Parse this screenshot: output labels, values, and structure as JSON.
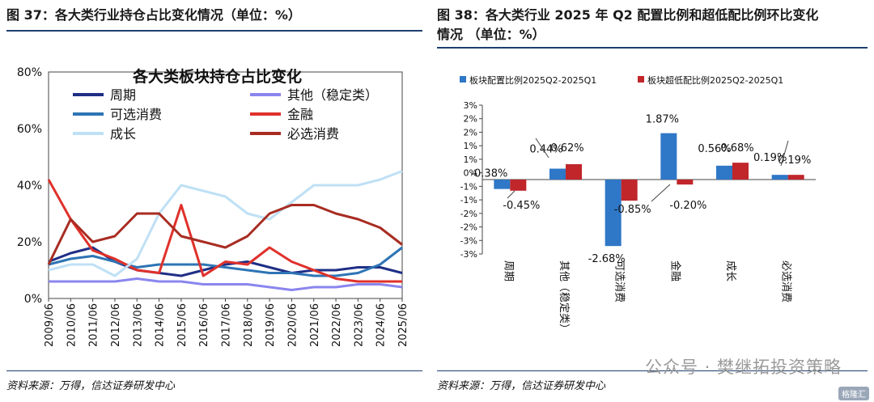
{
  "left": {
    "figure_title": "图 37：各大类行业持仓占比变化情况（单位：%）",
    "source": "资料来源：万得，信达证券研发中心"
  },
  "right": {
    "figure_title_line1": "图 38：各大类行业 2025 年 Q2 配置比例和超低配比例环比变化",
    "figure_title_line2": "情况 （单位：%）",
    "source": "资料来源：万得，信达证券研发中心"
  },
  "watermark": "公众号 · 樊继拓投资策略",
  "badge": "格隆汇",
  "colors": {
    "title_blue": "#1e3f6f",
    "zhouqi": "#1f2f86",
    "qita": "#8a86ee",
    "kexuan": "#2e74b5",
    "jinrong": "#e0312b",
    "chengzhang": "#bfe0f5",
    "bixuan": "#a82c22",
    "bar_blue": "#2f77c7",
    "bar_red": "#c0262a"
  },
  "chart_data": [
    {
      "type": "line",
      "title": "各大类板块持仓占比变化",
      "x": [
        "2009/06",
        "2010/06",
        "2011/06",
        "2012/06",
        "2013/06",
        "2014/06",
        "2015/06",
        "2016/06",
        "2017/06",
        "2018/06",
        "2019/06",
        "2020/06",
        "2021/06",
        "2022/06",
        "2023/06",
        "2024/06",
        "2025/06"
      ],
      "ylim": [
        0,
        80
      ],
      "y_ticks": [
        "0%",
        "20%",
        "40%",
        "60%",
        "80%"
      ],
      "legend_position": "top",
      "series": [
        {
          "name": "周期",
          "color": "zhouqi",
          "values": [
            13,
            16,
            18,
            13,
            10,
            9,
            8,
            10,
            12,
            13,
            11,
            9,
            10,
            10,
            11,
            11,
            9
          ]
        },
        {
          "name": "其他（稳定类）",
          "color": "qita",
          "values": [
            6,
            6,
            6,
            6,
            7,
            6,
            6,
            5,
            5,
            5,
            4,
            3,
            4,
            4,
            5,
            5,
            4
          ]
        },
        {
          "name": "可选消费",
          "color": "kexuan",
          "values": [
            12,
            14,
            15,
            13,
            11,
            12,
            12,
            12,
            11,
            10,
            9,
            9,
            8,
            8,
            9,
            12,
            18
          ]
        },
        {
          "name": "金融",
          "color": "jinrong",
          "values": [
            42,
            28,
            17,
            14,
            10,
            9,
            33,
            8,
            13,
            12,
            18,
            13,
            10,
            7,
            6,
            6,
            6
          ]
        },
        {
          "name": "成长",
          "color": "chengzhang",
          "values": [
            10,
            12,
            12,
            8,
            14,
            30,
            40,
            38,
            36,
            30,
            28,
            34,
            40,
            40,
            40,
            42,
            45
          ]
        },
        {
          "name": "必选消费",
          "color": "bixuan",
          "values": [
            12,
            28,
            20,
            22,
            30,
            30,
            22,
            20,
            18,
            22,
            30,
            33,
            33,
            30,
            28,
            25,
            19
          ]
        }
      ]
    },
    {
      "type": "bar",
      "categories": [
        "周期",
        "其他（稳定类）",
        "可选消费",
        "金融",
        "成长",
        "必选消费"
      ],
      "ylim": [
        -3,
        3
      ],
      "y_ticks": [
        "3%",
        "2%",
        "2%",
        "1%",
        "1%",
        "0%",
        "-1%",
        "-1%",
        "-2%",
        "-2%",
        "-3%",
        "-3%"
      ],
      "legend_position": "top",
      "series": [
        {
          "name": "板块配置比例2025Q2-2025Q1",
          "color": "bar_blue",
          "values": [
            -0.38,
            0.44,
            -2.68,
            1.87,
            0.56,
            0.19
          ],
          "labels": [
            "-0.38%",
            "0.44%",
            "-2.68%",
            "1.87%",
            "0.56%",
            "0.19%"
          ]
        },
        {
          "name": "板块超低配比例2025Q2-2025Q1",
          "color": "bar_red",
          "values": [
            -0.45,
            0.62,
            -0.85,
            -0.2,
            0.68,
            0.19
          ],
          "labels": [
            "-0.45%",
            "0.62%",
            "-0.85%",
            "-0.20%",
            "0.68%",
            "0.19%"
          ]
        }
      ]
    }
  ]
}
